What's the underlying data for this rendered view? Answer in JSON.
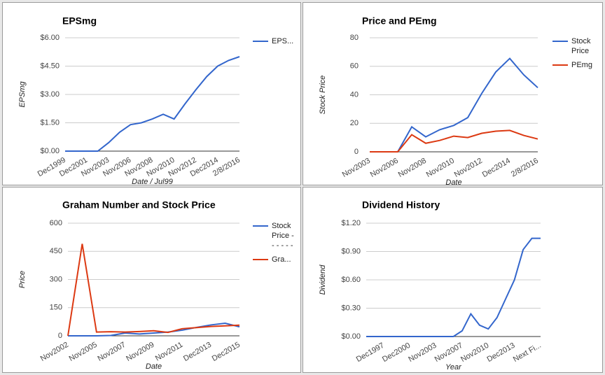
{
  "chart_data": [
    {
      "type": "line",
      "title": "EPSmg",
      "y_label": "EPSmg",
      "x_label": "Date / Jul99",
      "categories": [
        "Dec1999",
        null,
        "Dec2001",
        null,
        "Nov2003",
        null,
        "Nov2006",
        null,
        "Nov2008",
        null,
        "Nov2010",
        null,
        "Nov2012",
        null,
        "Dec2014",
        null,
        "2/8/2016"
      ],
      "series": [
        {
          "name": "EPS...",
          "color": "#3366cc",
          "values": [
            0,
            0,
            0,
            0,
            0.45,
            1.0,
            1.4,
            1.5,
            1.7,
            1.95,
            1.7,
            2.5,
            3.25,
            3.95,
            4.5,
            4.8,
            5.0
          ]
        }
      ],
      "ylim": [
        0,
        6
      ],
      "yticks": [
        {
          "value": 0,
          "label": "$0.00"
        },
        {
          "value": 1.5,
          "label": "$1.50"
        },
        {
          "value": 3,
          "label": "$3.00"
        },
        {
          "value": 4.5,
          "label": "$4.50"
        },
        {
          "value": 6,
          "label": "$6.00"
        }
      ],
      "grid": true,
      "legend": "right"
    },
    {
      "type": "line",
      "title": "Price and PEmg",
      "y_label": "Stock Price",
      "x_label": "Date",
      "categories": [
        "Nov2003",
        null,
        "Nov2006",
        null,
        "Nov2008",
        null,
        "Nov2010",
        null,
        "Nov2012",
        null,
        "Dec2014",
        null,
        "2/8/2016"
      ],
      "series": [
        {
          "name": "Stock Price",
          "color": "#3366cc",
          "values": [
            0,
            0,
            0,
            17.5,
            10.5,
            15.5,
            18.5,
            24,
            41,
            56,
            65.5,
            54,
            45
          ]
        },
        {
          "name": "PEmg",
          "color": "#dc3912",
          "values": [
            0,
            0,
            0,
            12,
            6,
            8,
            11,
            10,
            13,
            14.5,
            15,
            11.5,
            9
          ]
        }
      ],
      "ylim": [
        0,
        80
      ],
      "yticks": [
        0,
        20,
        40,
        60,
        80
      ],
      "grid": true,
      "legend": "right"
    },
    {
      "type": "line",
      "title": "Graham Number and Stock Price",
      "y_label": "Price",
      "x_label": "Date",
      "categories": [
        "Nov2002",
        null,
        "Nov2005",
        null,
        "Nov2007",
        null,
        "Nov2009",
        null,
        "Nov2011",
        null,
        "Dec2013",
        null,
        "Dec2015"
      ],
      "series": [
        {
          "name": "Stock Price - - - - - -",
          "color": "#3366cc",
          "values": [
            0,
            0,
            0,
            2,
            15,
            10,
            15,
            20,
            30,
            45,
            58,
            67,
            48
          ]
        },
        {
          "name": "Gra...",
          "color": "#dc3912",
          "values": [
            0,
            490,
            20,
            22,
            20,
            23,
            27,
            18,
            38,
            44,
            50,
            53,
            57
          ]
        }
      ],
      "ylim": [
        0,
        600
      ],
      "yticks": [
        0,
        150,
        300,
        450,
        600
      ],
      "grid": true,
      "legend": "right"
    },
    {
      "type": "line",
      "title": "Dividend History",
      "y_label": "Dividend",
      "x_label": "Year",
      "categories": [
        null,
        null,
        "Dec1997",
        null,
        null,
        "Dec2000",
        null,
        null,
        "Nov2003",
        null,
        null,
        "Nov2007",
        null,
        null,
        "Nov2010",
        null,
        null,
        "Dec2013",
        null,
        null,
        "Next Fi..."
      ],
      "series": [
        {
          "name": "Dividend",
          "color": "#3366cc",
          "values": [
            0,
            0,
            0,
            0,
            0,
            0,
            0,
            0,
            0,
            0,
            0,
            0.06,
            0.24,
            0.12,
            0.08,
            0.2,
            0.4,
            0.6,
            0.92,
            1.04,
            1.04
          ]
        }
      ],
      "ylim": [
        0,
        1.2
      ],
      "yticks": [
        {
          "value": 0,
          "label": "$0.00"
        },
        {
          "value": 0.3,
          "label": "$0.30"
        },
        {
          "value": 0.6,
          "label": "$0.60"
        },
        {
          "value": 0.9,
          "label": "$0.90"
        },
        {
          "value": 1.2,
          "label": "$1.20"
        }
      ],
      "grid": true,
      "legend": "none"
    }
  ]
}
